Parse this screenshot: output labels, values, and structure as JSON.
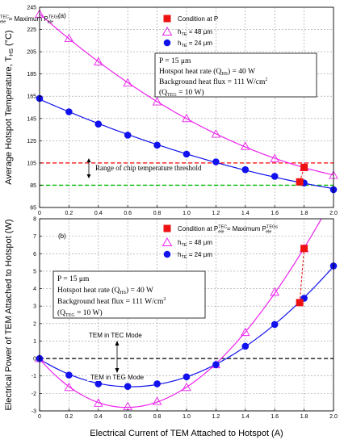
{
  "chart_data": [
    {
      "type": "line",
      "panel_label": "(a)",
      "xlabel": "",
      "ylabel_main": "Average Hotspot Temperature, T",
      "ylabel_sub": "HS",
      "ylabel_unit": " (°C)",
      "xlim": [
        0,
        2.0
      ],
      "ylim": [
        65,
        245
      ],
      "xticks": [
        "0",
        "0.2",
        "0.4",
        "0.6",
        "0.8",
        "1.0",
        "1.2",
        "1.4",
        "1.6",
        "1.8",
        "2.0"
      ],
      "yticks": [
        65,
        85,
        105,
        125,
        145,
        165,
        185,
        205,
        225,
        245
      ],
      "grid": true,
      "legend": [
        {
          "marker": "square",
          "pre": "Condition at P",
          "sub1": "ele",
          "sup1": "TEC",
          "mid": " = Maximum P",
          "sub2": "ele",
          "sup2": "TEGs"
        },
        {
          "marker": "triangle",
          "pre": "h",
          "sub1": "TE",
          "post": " = 48 μm"
        },
        {
          "marker": "circle",
          "pre": "h",
          "sub1": "TE",
          "post": " = 24 μm"
        }
      ],
      "info_box": {
        "line1": "P = 15 μm",
        "line2_pre": "Hotspot heat rate (Q",
        "line2_sub": "HS",
        "line2_post": ") = 40 W",
        "line3_pre": "Background heat flux = 111 W/cm",
        "line3_sup": "2",
        "line4_pre": "(Q",
        "line4_sub": "TEG",
        "line4_post": " = 10 W)"
      },
      "threshold_lines": {
        "upper": 105,
        "lower": 85,
        "upper_color": "#ff0000",
        "lower_color": "#00bb00"
      },
      "threshold_label": "Range of chip temperature threshold",
      "series": [
        {
          "name": "h_TE = 48 μm",
          "marker": "triangle",
          "color": "#ee22ee",
          "x": [
            0,
            0.2,
            0.4,
            0.6,
            0.8,
            1.0,
            1.2,
            1.4,
            1.6,
            1.8,
            2.0
          ],
          "y": [
            239,
            217,
            196,
            177,
            160,
            145,
            131,
            120,
            109,
            101,
            94
          ]
        },
        {
          "name": "h_TE = 24 μm",
          "marker": "circle",
          "color": "#1111ee",
          "x": [
            0,
            0.2,
            0.4,
            0.6,
            0.8,
            1.0,
            1.2,
            1.4,
            1.6,
            1.8,
            2.0
          ],
          "y": [
            163,
            151,
            140,
            130,
            121,
            113,
            106,
            99,
            93,
            87,
            81
          ]
        },
        {
          "name": "Condition",
          "marker": "square",
          "color": "#ee1111",
          "x": [
            1.77,
            1.8
          ],
          "y": [
            88,
            101
          ]
        }
      ]
    },
    {
      "type": "line",
      "panel_label": "(b)",
      "xlabel": "Electrical Current of TEM Attached to Hotspot (A)",
      "ylabel": "Electrical Power of TEM Attached to Hotspot (W)",
      "xlim": [
        0,
        2.0
      ],
      "ylim": [
        -3,
        8
      ],
      "xticks": [
        "0",
        "0.2",
        "0.4",
        "0.6",
        "0.8",
        "1.0",
        "1.2",
        "1.4",
        "1.6",
        "1.8",
        "2.0"
      ],
      "yticks": [
        -3,
        -2,
        -1,
        0,
        1,
        2,
        3,
        4,
        5,
        6,
        7,
        8
      ],
      "grid": true,
      "legend": [
        {
          "marker": "square",
          "pre": "Condition at P",
          "sub1": "ele",
          "sup1": "TEC",
          "mid": " = Maximum P",
          "sub2": "ele",
          "sup2": "TEGs"
        },
        {
          "marker": "triangle",
          "pre": "h",
          "sub1": "TE",
          "post": " = 48 μm"
        },
        {
          "marker": "circle",
          "pre": "h",
          "sub1": "TE",
          "post": " = 24 μm"
        }
      ],
      "info_box": {
        "line1": "P = 15 μm",
        "line2_pre": "Hotspot heat rate (Q",
        "line2_sub": "HS",
        "line2_post": ") = 40 W",
        "line3_pre": "Background heat flux = 111 W/cm",
        "line3_sup": "2",
        "line4_pre": "(Q",
        "line4_sub": "TEG",
        "line4_post": " = 10 W)"
      },
      "mode_labels": {
        "tec": "TEM in TEC Mode",
        "teg": "TEM in TEG Mode"
      },
      "series": [
        {
          "name": "h_TE = 48 μm",
          "marker": "triangle",
          "color": "#ee22ee",
          "x": [
            0,
            0.2,
            0.4,
            0.6,
            0.8,
            1.0,
            1.2,
            1.4,
            1.6,
            1.8
          ],
          "y": [
            0,
            -1.65,
            -2.55,
            -2.75,
            -2.45,
            -1.65,
            -0.35,
            1.5,
            3.8,
            6.3
          ]
        },
        {
          "name": "h_TE = 24 μm",
          "marker": "circle",
          "color": "#1111ee",
          "x": [
            0,
            0.2,
            0.4,
            0.6,
            0.8,
            1.0,
            1.2,
            1.4,
            1.6,
            1.8,
            2.0
          ],
          "y": [
            0,
            -0.95,
            -1.45,
            -1.6,
            -1.45,
            -1.05,
            -0.35,
            0.7,
            1.95,
            3.45,
            5.3
          ]
        },
        {
          "name": "Condition",
          "marker": "square",
          "color": "#ee1111",
          "x": [
            1.77,
            1.8
          ],
          "y": [
            3.2,
            6.3
          ]
        }
      ]
    }
  ]
}
